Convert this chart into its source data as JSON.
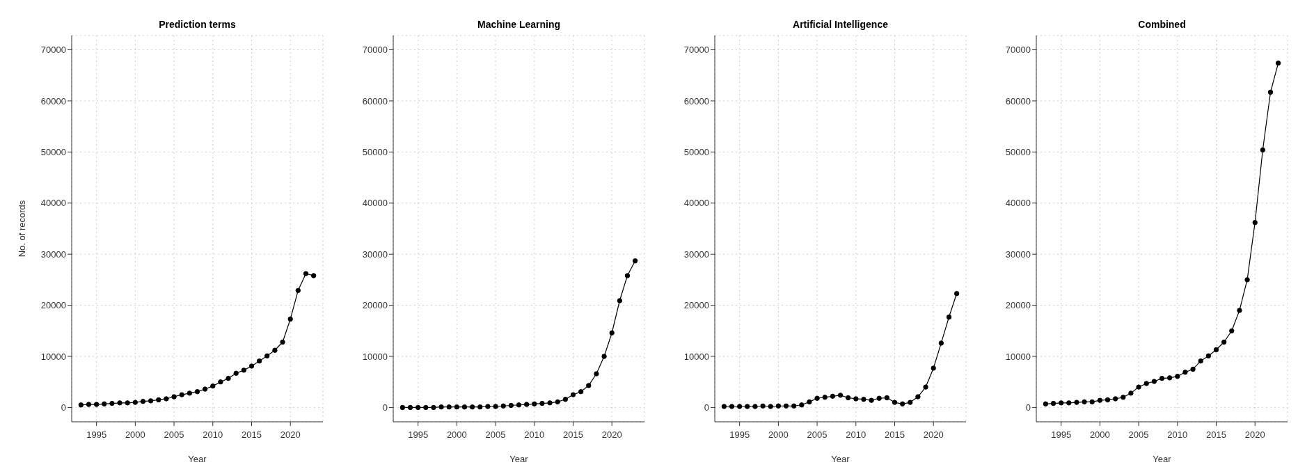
{
  "chart_data": [
    {
      "type": "line",
      "title": "Prediction terms",
      "xlabel": "Year",
      "ylabel": "No. of records",
      "x": [
        1993,
        1994,
        1995,
        1996,
        1997,
        1998,
        1999,
        2000,
        2001,
        2002,
        2003,
        2004,
        2005,
        2006,
        2007,
        2008,
        2009,
        2010,
        2011,
        2012,
        2013,
        2014,
        2015,
        2016,
        2017,
        2018,
        2019,
        2020,
        2021,
        2022,
        2023
      ],
      "series": [
        {
          "color": "#000000",
          "values": [
            500,
            600,
            600,
            700,
            800,
            900,
            900,
            1000,
            1200,
            1300,
            1500,
            1700,
            2100,
            2500,
            2800,
            3100,
            3600,
            4200,
            5000,
            5700,
            6700,
            7300,
            8100,
            9100,
            10100,
            11200,
            12800,
            17300,
            22900,
            26200,
            25800
          ]
        }
      ],
      "xlim": [
        1991.8,
        2024.2
      ],
      "xticks": [
        1995,
        2000,
        2005,
        2010,
        2015,
        2020
      ],
      "ylim": [
        -2800,
        72800
      ],
      "yticks": [
        0,
        10000,
        20000,
        30000,
        40000,
        50000,
        60000,
        70000
      ],
      "grid": true,
      "marker": "circle",
      "line_style": "solid"
    },
    {
      "type": "line",
      "title": "Machine Learning",
      "xlabel": "Year",
      "x": [
        1993,
        1994,
        1995,
        1996,
        1997,
        1998,
        1999,
        2000,
        2001,
        2002,
        2003,
        2004,
        2005,
        2006,
        2007,
        2008,
        2009,
        2010,
        2011,
        2012,
        2013,
        2014,
        2015,
        2016,
        2017,
        2018,
        2019,
        2020,
        2021,
        2022,
        2023
      ],
      "series": [
        {
          "color": "#000000",
          "values": [
            0,
            0,
            0,
            0,
            0,
            100,
            100,
            100,
            100,
            100,
            100,
            200,
            200,
            300,
            400,
            500,
            600,
            700,
            800,
            900,
            1100,
            1600,
            2500,
            3100,
            4300,
            6600,
            10000,
            14600,
            20900,
            25800,
            28700
          ]
        }
      ],
      "xlim": [
        1991.8,
        2024.2
      ],
      "xticks": [
        1995,
        2000,
        2005,
        2010,
        2015,
        2020
      ],
      "ylim": [
        -2800,
        72800
      ],
      "yticks": [
        0,
        10000,
        20000,
        30000,
        40000,
        50000,
        60000,
        70000
      ],
      "grid": true,
      "marker": "circle",
      "line_style": "solid"
    },
    {
      "type": "line",
      "title": "Artificial Intelligence",
      "xlabel": "Year",
      "x": [
        1993,
        1994,
        1995,
        1996,
        1997,
        1998,
        1999,
        2000,
        2001,
        2002,
        2003,
        2004,
        2005,
        2006,
        2007,
        2008,
        2009,
        2010,
        2011,
        2012,
        2013,
        2014,
        2015,
        2016,
        2017,
        2018,
        2019,
        2020,
        2021,
        2022,
        2023
      ],
      "series": [
        {
          "color": "#000000",
          "values": [
            200,
            200,
            200,
            200,
            200,
            300,
            200,
            300,
            300,
            300,
            500,
            1100,
            1800,
            2000,
            2200,
            2400,
            1900,
            1700,
            1600,
            1400,
            1800,
            1900,
            1000,
            700,
            1000,
            2100,
            4000,
            7700,
            12600,
            17700,
            22300
          ]
        }
      ],
      "xlim": [
        1991.8,
        2024.2
      ],
      "xticks": [
        1995,
        2000,
        2005,
        2010,
        2015,
        2020
      ],
      "ylim": [
        -2800,
        72800
      ],
      "yticks": [
        0,
        10000,
        20000,
        30000,
        40000,
        50000,
        60000,
        70000
      ],
      "grid": true,
      "marker": "circle",
      "line_style": "solid"
    },
    {
      "type": "line",
      "title": "Combined",
      "xlabel": "Year",
      "x": [
        1993,
        1994,
        1995,
        1996,
        1997,
        1998,
        1999,
        2000,
        2001,
        2002,
        2003,
        2004,
        2005,
        2006,
        2007,
        2008,
        2009,
        2010,
        2011,
        2012,
        2013,
        2014,
        2015,
        2016,
        2017,
        2018,
        2019,
        2020,
        2021,
        2022,
        2023
      ],
      "series": [
        {
          "color": "#000000",
          "values": [
            700,
            800,
            900,
            900,
            1000,
            1100,
            1100,
            1400,
            1500,
            1700,
            2000,
            2800,
            4000,
            4700,
            5100,
            5700,
            5800,
            6100,
            6900,
            7500,
            9100,
            10100,
            11300,
            12800,
            15000,
            19000,
            25000,
            36200,
            50400,
            61700,
            67400
          ]
        }
      ],
      "xlim": [
        1991.8,
        2024.2
      ],
      "xticks": [
        1995,
        2000,
        2005,
        2010,
        2015,
        2020
      ],
      "ylim": [
        -2800,
        72800
      ],
      "yticks": [
        0,
        10000,
        20000,
        30000,
        40000,
        50000,
        60000,
        70000
      ],
      "grid": true,
      "marker": "circle",
      "line_style": "solid"
    }
  ]
}
